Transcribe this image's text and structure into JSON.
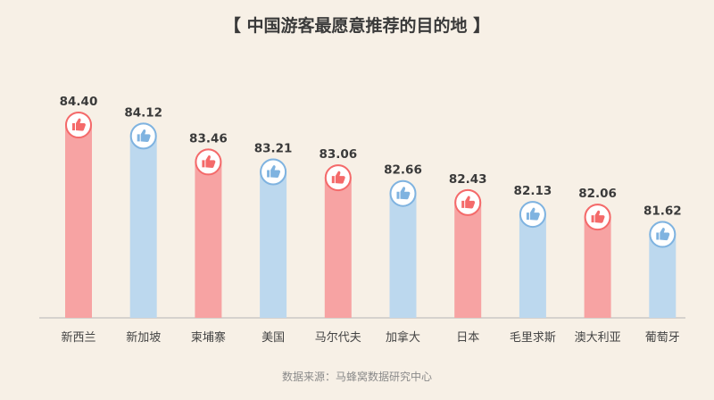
{
  "title": "【 中国游客最愿意推荐的目的地 】",
  "source": "数据来源：马蜂窝数据研究中心",
  "colors": {
    "pink": "#f7a3a3",
    "blue": "#bcd8ee",
    "pink_ring": "#f46a6a",
    "blue_ring": "#7fb3e0",
    "axis": "#b5b5b5"
  },
  "chart_data": {
    "type": "bar",
    "title": "【 中国游客最愿意推荐的目的地 】",
    "xlabel": "",
    "ylabel": "",
    "categories": [
      "新西兰",
      "新加坡",
      "柬埔寨",
      "美国",
      "马尔代夫",
      "加拿大",
      "日本",
      "毛里求斯",
      "澳大利亚",
      "葡萄牙"
    ],
    "values": [
      84.4,
      84.12,
      83.46,
      83.21,
      83.06,
      82.66,
      82.43,
      82.13,
      82.06,
      81.62
    ],
    "value_labels": [
      "84.40",
      "84.12",
      "83.46",
      "83.21",
      "83.06",
      "82.66",
      "82.43",
      "82.13",
      "82.06",
      "81.62"
    ],
    "bar_colors": [
      "pink",
      "blue",
      "pink",
      "blue",
      "pink",
      "blue",
      "pink",
      "blue",
      "pink",
      "blue"
    ],
    "icon": "thumbs-up-icon",
    "ylim": [
      79.5,
      84.4
    ],
    "grid": false,
    "legend": "none"
  }
}
